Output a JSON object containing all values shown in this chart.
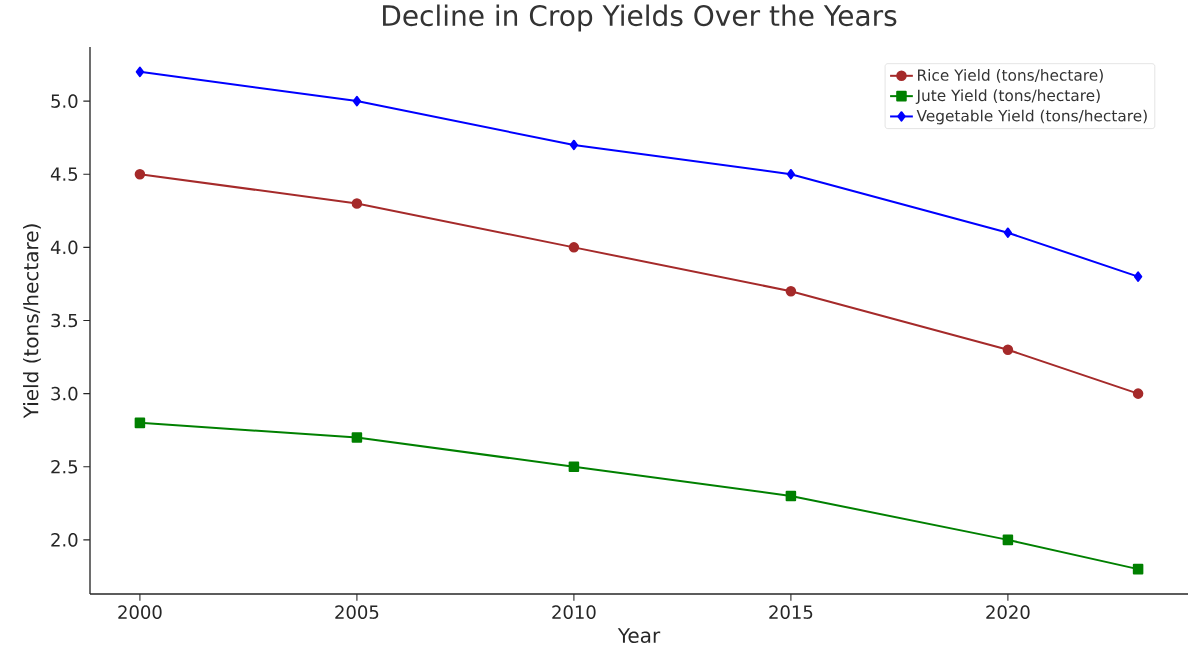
{
  "chart_data": {
    "type": "line",
    "title": "Decline in Crop Yields Over the Years",
    "xlabel": "Year",
    "ylabel": "Yield (tons/hectare)",
    "x": [
      2000,
      2005,
      2010,
      2015,
      2020,
      2023
    ],
    "series": [
      {
        "name": "Rice Yield (tons/hectare)",
        "color": "#a52a2a",
        "marker": "circle",
        "values": [
          4.5,
          4.3,
          4.0,
          3.7,
          3.3,
          3.0
        ]
      },
      {
        "name": "Jute Yield (tons/hectare)",
        "color": "#008000",
        "marker": "square",
        "values": [
          2.8,
          2.7,
          2.5,
          2.3,
          2.0,
          1.8
        ]
      },
      {
        "name": "Vegetable Yield (tons/hectare)",
        "color": "#0000ff",
        "marker": "diamond",
        "values": [
          5.2,
          5.0,
          4.7,
          4.5,
          4.1,
          3.8
        ]
      }
    ],
    "xlim": [
      1998.85,
      2024.15
    ],
    "ylim": [
      1.63,
      5.37
    ],
    "xticks": [
      2000,
      2005,
      2010,
      2015,
      2020
    ],
    "yticks": [
      {
        "value": 2,
        "label": "2.0"
      },
      {
        "value": 2.5,
        "label": "2.5"
      },
      {
        "value": 3,
        "label": "3.0"
      },
      {
        "value": 3.5,
        "label": "3.5"
      },
      {
        "value": 4,
        "label": "4.0"
      },
      {
        "value": 4.5,
        "label": "4.5"
      },
      {
        "value": 5,
        "label": "5.0"
      }
    ],
    "grid": false,
    "legend": "top right",
    "line_style": "solid"
  }
}
